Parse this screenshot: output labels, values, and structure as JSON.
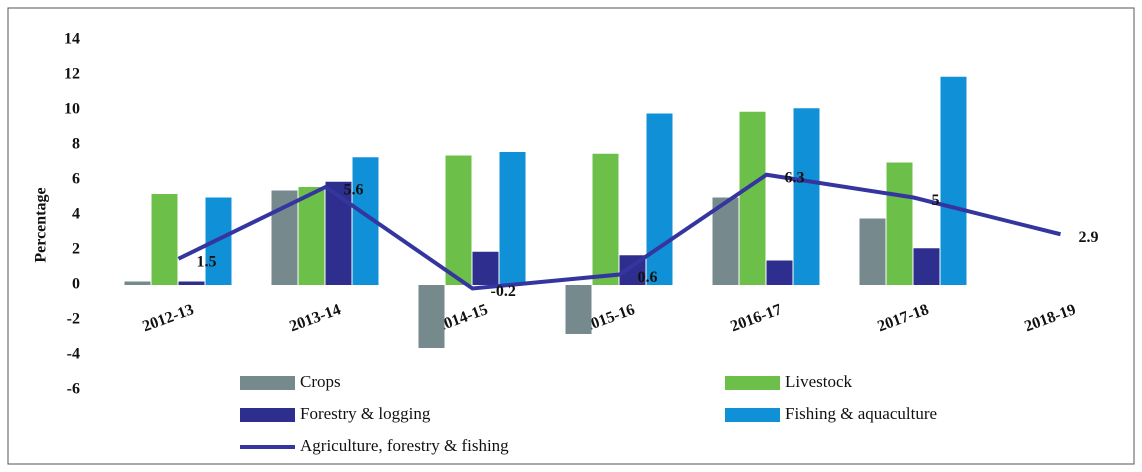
{
  "chart_data": {
    "type": "bar",
    "y_label": "Percentage",
    "categories": [
      "2012-13",
      "2013-14",
      "2014-15",
      "2015-16",
      "2016-17",
      "2017-18",
      "2018-19"
    ],
    "series": [
      {
        "name": "Crops",
        "color": "#76898d",
        "values": [
          0.2,
          5.4,
          -3.6,
          -2.8,
          5.0,
          3.8,
          null
        ]
      },
      {
        "name": "Livestock",
        "color": "#6cc04a",
        "values": [
          5.2,
          5.6,
          7.4,
          7.5,
          9.9,
          7.0,
          null
        ]
      },
      {
        "name": "Forestry & logging",
        "color": "#2e2e8e",
        "values": [
          0.2,
          5.9,
          1.9,
          1.7,
          1.4,
          2.1,
          null
        ]
      },
      {
        "name": "Fishing & aquaculture",
        "color": "#1090d6",
        "values": [
          5.0,
          7.3,
          7.6,
          9.8,
          10.1,
          11.9,
          null
        ]
      },
      {
        "name": "Agriculture, forestry & fishing",
        "type": "line",
        "color": "#3535a0",
        "values": [
          1.5,
          5.6,
          -0.2,
          0.6,
          6.3,
          5,
          2.9
        ]
      }
    ],
    "ylim": [
      -6,
      14
    ],
    "yticks": [
      -6,
      -4,
      -2,
      0,
      2,
      4,
      6,
      8,
      10,
      12,
      14
    ],
    "grid": false
  }
}
